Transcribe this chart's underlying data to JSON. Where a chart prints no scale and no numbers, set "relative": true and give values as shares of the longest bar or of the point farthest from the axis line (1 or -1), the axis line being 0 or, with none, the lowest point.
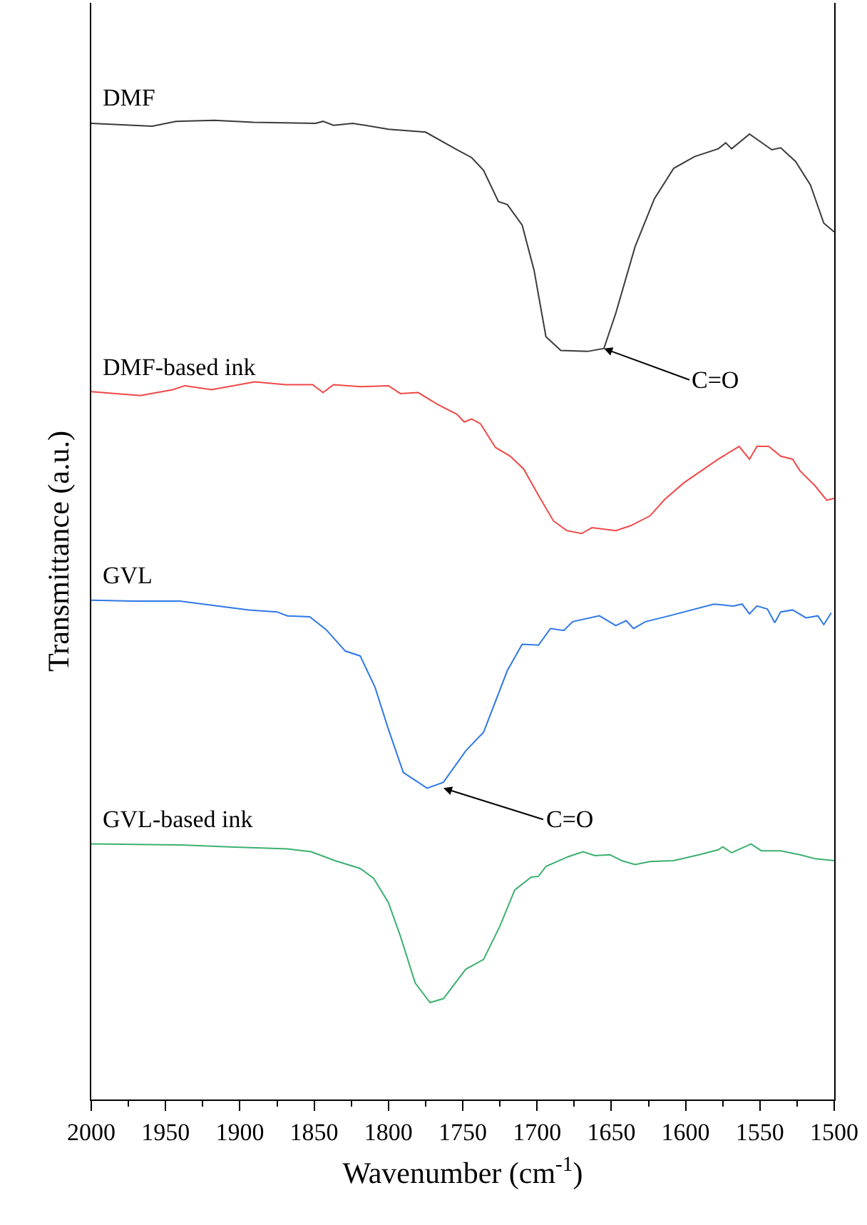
{
  "chart_data": {
    "type": "line",
    "relative": true,
    "xlabel": "Wavenumber (cm$^{-1}$)",
    "ylabel": "Transmittance (a.u.)",
    "xlim": [
      2000,
      1500
    ],
    "xticks": [
      2000,
      {
        "value": 1975,
        "label": null
      },
      1950,
      {
        "value": 1925,
        "label": null
      },
      1900,
      {
        "value": 1875,
        "label": null
      },
      1850,
      {
        "value": 1825,
        "label": null
      },
      1800,
      {
        "value": 1775,
        "label": null
      },
      1750,
      {
        "value": 1725,
        "label": null
      },
      1700,
      {
        "value": 1675,
        "label": null
      },
      1650,
      {
        "value": 1625,
        "label": null
      },
      1600,
      {
        "value": 1575,
        "label": null
      },
      1550,
      {
        "value": 1525,
        "label": null
      },
      1500
    ],
    "legend": false,
    "marker": "none",
    "line_style": "solid",
    "tick_labels": "x",
    "series": [
      {
        "name": "DMF",
        "color": "#3a3a3a",
        "x": [
          2000,
          1959,
          1943,
          1917,
          1891,
          1849,
          1844,
          1837,
          1824,
          1800,
          1775,
          1754,
          1744,
          1736,
          1726,
          1720,
          1710,
          1702,
          1694,
          1684,
          1666,
          1655,
          1647,
          1634,
          1621,
          1608,
          1594,
          1578,
          1573,
          1569,
          1557,
          1542,
          1536,
          1526,
          1516,
          1507,
          1500
        ],
        "values": [
          0.997,
          0.994,
          0.999,
          1.0,
          0.998,
          0.997,
          0.999,
          0.995,
          0.997,
          0.991,
          0.988,
          0.97,
          0.962,
          0.949,
          0.917,
          0.914,
          0.893,
          0.847,
          0.779,
          0.765,
          0.764,
          0.767,
          0.803,
          0.871,
          0.92,
          0.951,
          0.963,
          0.971,
          0.977,
          0.971,
          0.986,
          0.97,
          0.972,
          0.958,
          0.934,
          0.895,
          0.886
        ]
      },
      {
        "name": "DMF-based ink",
        "color": "#f04848",
        "x": [
          2000,
          1967,
          1945,
          1937,
          1919,
          1890,
          1869,
          1851,
          1844,
          1837,
          1819,
          1800,
          1792,
          1780,
          1767,
          1754,
          1749,
          1744,
          1738,
          1728,
          1718,
          1709,
          1699,
          1689,
          1680,
          1670,
          1663,
          1647,
          1637,
          1624,
          1614,
          1601,
          1578,
          1564,
          1557,
          1552,
          1544,
          1536,
          1528,
          1523,
          1513,
          1505,
          1500
        ],
        "values": [
          0.723,
          0.719,
          0.725,
          0.729,
          0.725,
          0.733,
          0.73,
          0.73,
          0.722,
          0.73,
          0.728,
          0.729,
          0.721,
          0.722,
          0.71,
          0.7,
          0.692,
          0.695,
          0.69,
          0.666,
          0.657,
          0.644,
          0.617,
          0.591,
          0.581,
          0.578,
          0.584,
          0.581,
          0.586,
          0.596,
          0.613,
          0.63,
          0.654,
          0.667,
          0.654,
          0.667,
          0.667,
          0.657,
          0.654,
          0.642,
          0.627,
          0.612,
          0.614
        ]
      },
      {
        "name": "GVL",
        "color": "#2f78e6",
        "x": [
          2000,
          1972,
          1940,
          1920,
          1894,
          1875,
          1868,
          1853,
          1842,
          1829,
          1819,
          1809,
          1800,
          1790,
          1774,
          1763,
          1748,
          1736,
          1720,
          1710,
          1699,
          1691,
          1682,
          1676,
          1658,
          1647,
          1640,
          1635,
          1627,
          1611,
          1581,
          1568,
          1562,
          1557,
          1552,
          1545,
          1540,
          1536,
          1528,
          1519,
          1511,
          1507,
          1502
        ],
        "values": [
          0.51,
          0.509,
          0.509,
          0.505,
          0.5,
          0.498,
          0.494,
          0.493,
          0.48,
          0.458,
          0.453,
          0.421,
          0.378,
          0.334,
          0.318,
          0.324,
          0.356,
          0.375,
          0.438,
          0.465,
          0.464,
          0.481,
          0.479,
          0.488,
          0.494,
          0.484,
          0.489,
          0.481,
          0.488,
          0.494,
          0.506,
          0.504,
          0.506,
          0.496,
          0.504,
          0.501,
          0.487,
          0.498,
          0.5,
          0.492,
          0.494,
          0.485,
          0.497
        ]
      },
      {
        "name": "GVL-based ink",
        "color": "#3cb070",
        "x": [
          2000,
          1940,
          1907,
          1868,
          1852,
          1836,
          1819,
          1810,
          1800,
          1792,
          1782,
          1772,
          1763,
          1748,
          1736,
          1725,
          1715,
          1704,
          1699,
          1694,
          1679,
          1669,
          1661,
          1651,
          1643,
          1634,
          1624,
          1608,
          1591,
          1578,
          1575,
          1569,
          1556,
          1549,
          1536,
          1523,
          1513,
          1500
        ],
        "values": [
          0.261,
          0.26,
          0.258,
          0.256,
          0.253,
          0.244,
          0.236,
          0.226,
          0.201,
          0.167,
          0.119,
          0.099,
          0.103,
          0.133,
          0.143,
          0.177,
          0.214,
          0.227,
          0.228,
          0.238,
          0.248,
          0.253,
          0.249,
          0.25,
          0.244,
          0.24,
          0.243,
          0.244,
          0.25,
          0.255,
          0.258,
          0.252,
          0.261,
          0.254,
          0.254,
          0.25,
          0.246,
          0.244
        ]
      }
    ],
    "annotations": [
      {
        "text": "C=O",
        "x": 1655,
        "y": 0.767
      },
      {
        "text": "C=O",
        "x": 1763,
        "y": 0.318
      }
    ]
  }
}
